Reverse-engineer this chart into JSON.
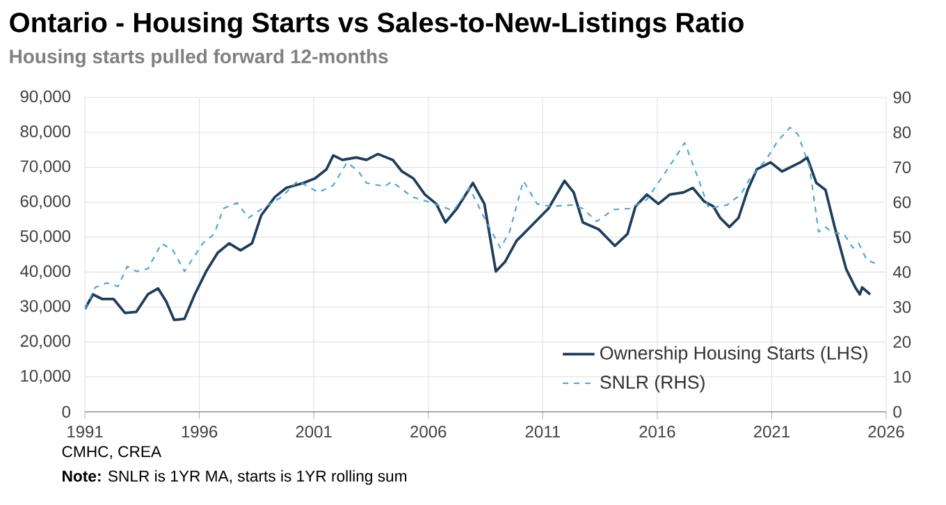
{
  "chart_data": {
    "type": "line",
    "title": "Ontario - Housing Starts vs Sales-to-New-Listings Ratio",
    "subtitle": "Housing starts pulled forward 12-months",
    "annotations": [
      "CMHC, CREA",
      "**Note:** SNLR is 1YR MA, starts is 1YR rolling sum"
    ],
    "xlim": [
      1991,
      2026
    ],
    "xticks": [
      1991,
      1996,
      2001,
      2006,
      2011,
      2016,
      2021,
      2026
    ],
    "ylim": [
      0,
      90000
    ],
    "yticks": [
      0,
      {
        "value": 10000,
        "label": "10,000"
      },
      {
        "value": 20000,
        "label": "20,000"
      },
      {
        "value": 30000,
        "label": "30,000"
      },
      {
        "value": 40000,
        "label": "40,000"
      },
      {
        "value": 50000,
        "label": "50,000"
      },
      {
        "value": 60000,
        "label": "60,000"
      },
      {
        "value": 70000,
        "label": "70,000"
      },
      {
        "value": 80000,
        "label": "80,000"
      },
      {
        "value": 90000,
        "label": "90,000"
      }
    ],
    "y2lim": [
      0,
      90
    ],
    "y2ticks": [
      0,
      10,
      20,
      30,
      40,
      50,
      60,
      70,
      80,
      90
    ],
    "grid": true,
    "legend": "bottom right",
    "series": [
      {
        "name": "Ownership Housing Starts (LHS)",
        "color": "#1d3d5c",
        "line_style": "solid",
        "x": [
          1991,
          1991.35,
          1991.75,
          1992.25,
          1992.75,
          1993.25,
          1993.75,
          1994.2,
          1994.55,
          1994.9,
          1995.35,
          1995.8,
          1996.3,
          1996.8,
          1997.3,
          1997.8,
          1998.3,
          1998.7,
          1999.3,
          1999.8,
          2000.55,
          2001.05,
          2001.55,
          2001.85,
          2002.25,
          2002.85,
          2003.3,
          2003.8,
          2004.45,
          2004.85,
          2005.35,
          2005.85,
          2006.35,
          2006.75,
          2007.25,
          2007.95,
          2008.45,
          2008.95,
          2009.35,
          2009.85,
          2010.65,
          2011.25,
          2011.95,
          2012.35,
          2012.75,
          2013.45,
          2014.15,
          2014.7,
          2015.05,
          2015.55,
          2016.05,
          2016.55,
          2017.15,
          2017.55,
          2018.05,
          2018.45,
          2018.75,
          2019.15,
          2019.55,
          2019.95,
          2020.35,
          2020.95,
          2021.45,
          2022.25,
          2022.55,
          2022.95,
          2023.35,
          2023.75,
          2024.25,
          2024.65,
          2024.85,
          2024.95,
          2025.3
        ],
        "values": [
          29400,
          33600,
          32300,
          32300,
          28300,
          28600,
          33600,
          35300,
          31600,
          26300,
          26600,
          33600,
          40200,
          45500,
          48200,
          46200,
          48200,
          56200,
          61500,
          64100,
          65500,
          66800,
          69400,
          73400,
          72100,
          72800,
          72100,
          73800,
          72100,
          68800,
          66800,
          62200,
          59500,
          54200,
          58200,
          65500,
          59500,
          40200,
          42900,
          48900,
          54200,
          58200,
          66100,
          62800,
          54200,
          52200,
          47500,
          50900,
          58800,
          62200,
          59500,
          62200,
          62800,
          64100,
          60200,
          58800,
          55500,
          52900,
          55500,
          63500,
          69400,
          71400,
          68800,
          71400,
          72800,
          65500,
          63500,
          52900,
          40900,
          35600,
          33600,
          35600,
          33600
        ]
      },
      {
        "name": "SNLR (RHS)",
        "color": "#4ea3d8",
        "line_style": "dashed",
        "axis": "y2",
        "x": [
          1991,
          1991.45,
          1991.95,
          1992.45,
          1992.85,
          1993.25,
          1993.75,
          1994.35,
          1994.85,
          1995.35,
          1996.15,
          1996.65,
          1997.05,
          1997.65,
          1998.15,
          1998.75,
          1999.6,
          2000.3,
          2001.2,
          2001.85,
          2002.45,
          2002.95,
          2003.3,
          2004.1,
          2004.4,
          2005.3,
          2006.3,
          2007.1,
          2007.8,
          2008.45,
          2009.15,
          2009.55,
          2010.15,
          2010.75,
          2011.35,
          2012.25,
          2012.75,
          2013.35,
          2014.1,
          2014.8,
          2015.55,
          2016.25,
          2016.85,
          2017.2,
          2017.75,
          2018.25,
          2019.05,
          2019.65,
          2020.05,
          2020.75,
          2021.25,
          2021.8,
          2022.15,
          2022.65,
          2023.05,
          2023.35,
          2023.65,
          2024.15,
          2024.55,
          2024.8,
          2025.15,
          2025.5
        ],
        "values": [
          29.4,
          35.6,
          36.9,
          35.9,
          41.6,
          40.2,
          40.9,
          48.2,
          46.2,
          40.2,
          48.2,
          50.9,
          58.2,
          59.8,
          55.5,
          58.2,
          61.5,
          66.1,
          62.8,
          64.8,
          71.4,
          68.8,
          65.5,
          64.5,
          65.9,
          61.5,
          59.5,
          57.5,
          64.1,
          55.5,
          46.9,
          51.5,
          66.1,
          59.5,
          58.8,
          59.2,
          58.2,
          54.5,
          57.9,
          58.2,
          60.8,
          67.5,
          73.4,
          77.0,
          67.5,
          58.2,
          59.2,
          62.2,
          66.8,
          72.1,
          77.4,
          81.4,
          79.4,
          70.1,
          51.5,
          52.9,
          51.3,
          50.9,
          46.9,
          48.2,
          43.5,
          42.5
        ]
      }
    ]
  }
}
